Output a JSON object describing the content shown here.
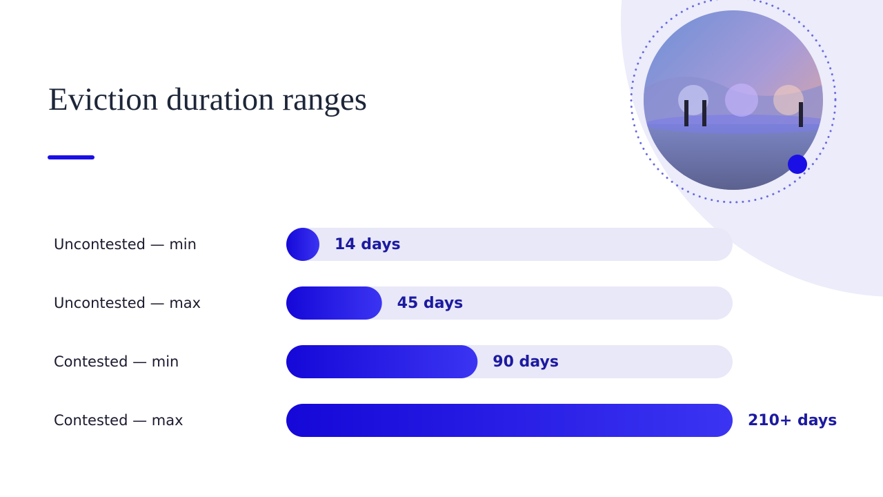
{
  "chart_data": {
    "type": "bar",
    "orientation": "horizontal",
    "title": "Eviction duration ranges",
    "categories": [
      "Uncontested — min",
      "Uncontested — max",
      "Contested — min",
      "Contested — max"
    ],
    "values": [
      14,
      45,
      90,
      210
    ],
    "value_labels": [
      "14 days",
      "45 days",
      "90 days",
      "210+ days"
    ],
    "color": "#1a10e6",
    "track_color": "#e8e8f8"
  }
}
